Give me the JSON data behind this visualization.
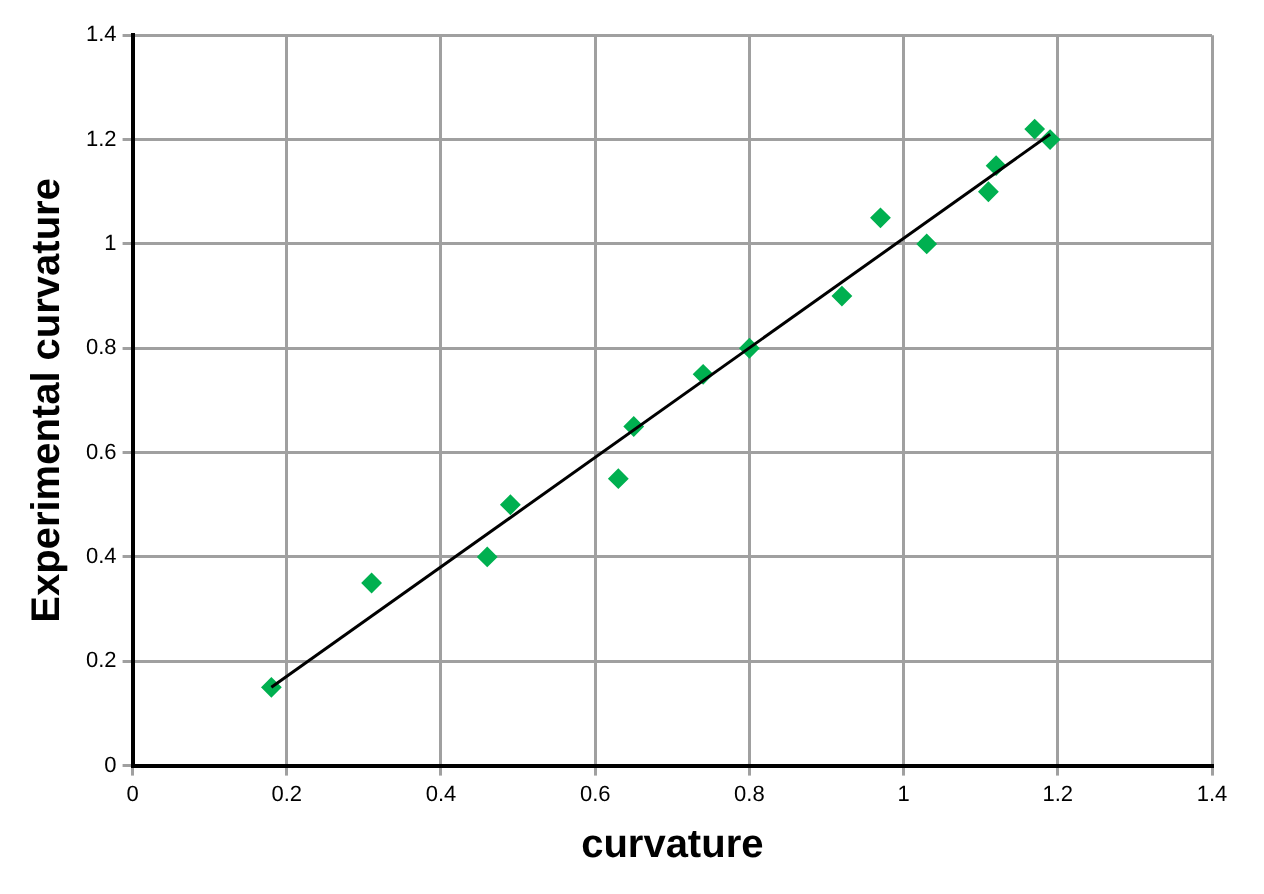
{
  "chart_data": {
    "type": "scatter",
    "xlabel": "curvature",
    "ylabel": "Experimental curvature",
    "xlim": [
      0,
      1.4
    ],
    "ylim": [
      0,
      1.4
    ],
    "xticks": [
      0,
      0.2,
      0.4,
      0.6,
      0.8,
      1,
      1.2,
      1.4
    ],
    "yticks": [
      0,
      0.2,
      0.4,
      0.6,
      0.8,
      1,
      1.2,
      1.4
    ],
    "grid": true,
    "legend": false,
    "marker": "diamond",
    "series": [
      {
        "type": "scatter",
        "color": "#00b050",
        "x": [
          0.18,
          0.31,
          0.46,
          0.49,
          0.63,
          0.65,
          0.74,
          0.8,
          0.92,
          0.97,
          1.03,
          1.11,
          1.12,
          1.17,
          1.19
        ],
        "values": [
          0.15,
          0.35,
          0.4,
          0.5,
          0.55,
          0.65,
          0.75,
          0.8,
          0.9,
          1.05,
          1.0,
          1.1,
          1.15,
          1.22,
          1.2
        ]
      },
      {
        "type": "line",
        "color": "#000000",
        "x": [
          0.18,
          1.19
        ],
        "values": [
          0.15,
          1.21
        ],
        "marker": "none",
        "line_style": "solid"
      }
    ]
  }
}
